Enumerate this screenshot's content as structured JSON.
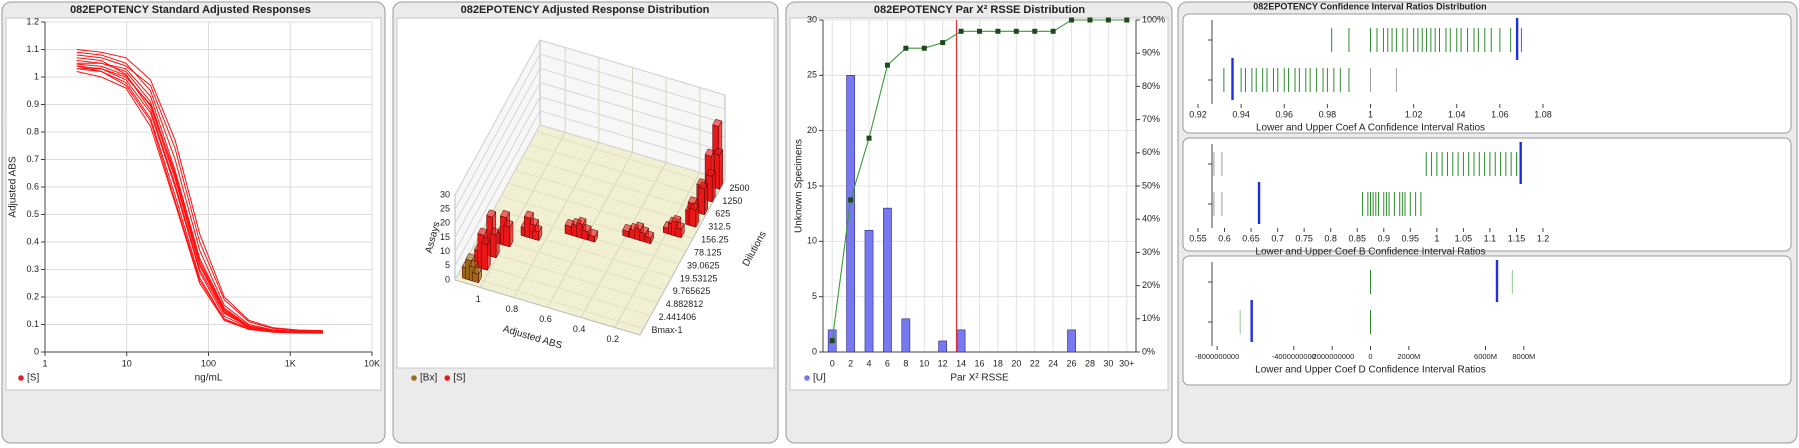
{
  "chart_data": [
    {
      "type": "line",
      "title": "082EPOTENCY Standard Adjusted Responses",
      "xlabel": "ng/mL",
      "ylabel": "Adjusted ABS",
      "xscale": "log",
      "xlim": [
        1,
        10000
      ],
      "xticks": [
        1,
        10,
        100,
        {
          "value": 1000,
          "label": "1K"
        },
        {
          "value": 10000,
          "label": "10K"
        }
      ],
      "ylim": [
        0,
        1.2
      ],
      "yticks": [
        0,
        0.1,
        0.2,
        0.3,
        0.4,
        0.5,
        0.6,
        0.7,
        0.8,
        0.9,
        1,
        1.1,
        1.2
      ],
      "grid": true,
      "color": "#ff1010",
      "legend": {
        "label": "[S]",
        "color": "#e8202a"
      },
      "x": [
        2.441406,
        4.882812,
        9.765625,
        19.53125,
        39.0625,
        78.125,
        156.25,
        312.5,
        625,
        1250,
        2500
      ],
      "series": [
        {
          "values": [
            1.047,
            1.039,
            1.006,
            0.895,
            0.629,
            0.314,
            0.145,
            0.09,
            0.075,
            0.071,
            0.07
          ]
        },
        {
          "values": [
            1.09,
            1.08,
            1.05,
            0.95,
            0.7,
            0.37,
            0.17,
            0.1,
            0.08,
            0.075,
            0.074
          ]
        },
        {
          "values": [
            1.03,
            1.02,
            0.98,
            0.85,
            0.57,
            0.27,
            0.12,
            0.085,
            0.074,
            0.071,
            0.07
          ]
        },
        {
          "values": [
            1.06,
            1.05,
            1.03,
            0.93,
            0.66,
            0.34,
            0.16,
            0.095,
            0.078,
            0.073,
            0.072
          ]
        },
        {
          "values": [
            1.02,
            1.0,
            0.96,
            0.82,
            0.54,
            0.25,
            0.115,
            0.082,
            0.072,
            0.069,
            0.068
          ]
        },
        {
          "values": [
            1.08,
            1.07,
            1.04,
            0.97,
            0.74,
            0.4,
            0.19,
            0.11,
            0.085,
            0.078,
            0.076
          ]
        },
        {
          "values": [
            1.04,
            1.03,
            0.99,
            0.87,
            0.6,
            0.29,
            0.13,
            0.088,
            0.076,
            0.072,
            0.071
          ]
        },
        {
          "values": [
            1.05,
            1.05,
            1.02,
            0.91,
            0.64,
            0.32,
            0.15,
            0.092,
            0.077,
            0.072,
            0.071
          ]
        },
        {
          "values": [
            1.07,
            1.06,
            1.01,
            0.88,
            0.61,
            0.3,
            0.14,
            0.091,
            0.079,
            0.075,
            0.074
          ]
        },
        {
          "values": [
            1.03,
            1.03,
            1.0,
            0.9,
            0.65,
            0.33,
            0.155,
            0.094,
            0.079,
            0.074,
            0.073
          ]
        },
        {
          "values": [
            1.1,
            1.09,
            1.07,
            0.99,
            0.77,
            0.43,
            0.2,
            0.115,
            0.088,
            0.08,
            0.078
          ]
        },
        {
          "values": [
            1.04,
            1.02,
            0.97,
            0.84,
            0.55,
            0.26,
            0.12,
            0.083,
            0.073,
            0.07,
            0.069
          ]
        }
      ]
    },
    {
      "type": "bar3d",
      "title": "082EPOTENCY Adjusted Response Distribution",
      "xlabel": "Adjusted ABS",
      "ylabel": "Dilutions",
      "zlabel": "Assays",
      "abs_lim": [
        1.15,
        0.05
      ],
      "abs_ticks": [
        1,
        0.8,
        0.6,
        0.4,
        0.2
      ],
      "zlim": [
        0,
        30
      ],
      "zticks": [
        0,
        5,
        10,
        15,
        20,
        25,
        30
      ],
      "dilutions": [
        "Bmax-1",
        "2.441406",
        "4.882812",
        "9.765625",
        "19.53125",
        "39.0625",
        "78.125",
        "156.25",
        "312.5",
        "625",
        "1250",
        "2500"
      ],
      "series": [
        {
          "name": "[S]",
          "color": "#e81818",
          "bars": [
            {
              "dilution": 11,
              "abs": 0.075,
              "assays": 22
            },
            {
              "dilution": 11,
              "abs": 0.07,
              "assays": 12
            },
            {
              "dilution": 10,
              "abs": 0.078,
              "assays": 16
            },
            {
              "dilution": 10,
              "abs": 0.072,
              "assays": 9
            },
            {
              "dilution": 9,
              "abs": 0.085,
              "assays": 10
            },
            {
              "dilution": 9,
              "abs": 0.075,
              "assays": 9
            },
            {
              "dilution": 8,
              "abs": 0.11,
              "assays": 5
            },
            {
              "dilution": 8,
              "abs": 0.095,
              "assays": 8
            },
            {
              "dilution": 8,
              "abs": 0.085,
              "assays": 6
            },
            {
              "dilution": 7,
              "abs": 0.2,
              "assays": 2
            },
            {
              "dilution": 7,
              "abs": 0.17,
              "assays": 4
            },
            {
              "dilution": 7,
              "abs": 0.15,
              "assays": 5
            },
            {
              "dilution": 7,
              "abs": 0.13,
              "assays": 3
            },
            {
              "dilution": 6,
              "abs": 0.4,
              "assays": 2
            },
            {
              "dilution": 6,
              "abs": 0.36,
              "assays": 3
            },
            {
              "dilution": 6,
              "abs": 0.33,
              "assays": 4
            },
            {
              "dilution": 6,
              "abs": 0.3,
              "assays": 3
            },
            {
              "dilution": 6,
              "abs": 0.27,
              "assays": 2
            },
            {
              "dilution": 5,
              "abs": 0.7,
              "assays": 3
            },
            {
              "dilution": 5,
              "abs": 0.66,
              "assays": 4
            },
            {
              "dilution": 5,
              "abs": 0.63,
              "assays": 5
            },
            {
              "dilution": 5,
              "abs": 0.6,
              "assays": 3
            },
            {
              "dilution": 5,
              "abs": 0.56,
              "assays": 2
            },
            {
              "dilution": 4,
              "abs": 0.92,
              "assays": 3
            },
            {
              "dilution": 4,
              "abs": 0.9,
              "assays": 7
            },
            {
              "dilution": 4,
              "abs": 0.87,
              "assays": 5
            },
            {
              "dilution": 4,
              "abs": 0.85,
              "assays": 3
            },
            {
              "dilution": 3,
              "abs": 1.02,
              "assays": 4
            },
            {
              "dilution": 3,
              "abs": 1.0,
              "assays": 10
            },
            {
              "dilution": 3,
              "abs": 0.98,
              "assays": 7
            },
            {
              "dilution": 2,
              "abs": 1.06,
              "assays": 5
            },
            {
              "dilution": 2,
              "abs": 1.04,
              "assays": 14
            },
            {
              "dilution": 2,
              "abs": 1.02,
              "assays": 8
            },
            {
              "dilution": 1,
              "abs": 1.07,
              "assays": 6
            },
            {
              "dilution": 1,
              "abs": 1.05,
              "assays": 12
            },
            {
              "dilution": 1,
              "abs": 1.03,
              "assays": 9
            }
          ]
        },
        {
          "name": "[Bx]",
          "color": "#9a6a18",
          "bars": [
            {
              "dilution": 0,
              "abs": 1.1,
              "assays": 4
            },
            {
              "dilution": 0,
              "abs": 1.08,
              "assays": 7
            },
            {
              "dilution": 0,
              "abs": 1.06,
              "assays": 5
            },
            {
              "dilution": 0,
              "abs": 1.04,
              "assays": 3
            }
          ]
        }
      ]
    },
    {
      "type": "bar",
      "title": "082EPOTENCY Par X² RSSE Distribution",
      "xlabel": "Par X² RSSE",
      "ylabel": "Unknown Specimens",
      "categories": [
        "0",
        "2",
        "4",
        "6",
        "8",
        "10",
        "12",
        "14",
        "16",
        "18",
        "20",
        "22",
        "24",
        "26",
        "28",
        "30",
        "30+"
      ],
      "ylim": [
        0,
        30
      ],
      "yticks": [
        0,
        5,
        10,
        15,
        20,
        25,
        30
      ],
      "y2lim": [
        0,
        100
      ],
      "y2ticks": [
        {
          "value": 0,
          "label": "0%"
        },
        {
          "value": 10,
          "label": "10%"
        },
        {
          "value": 20,
          "label": "20%"
        },
        {
          "value": 30,
          "label": "30%"
        },
        {
          "value": 40,
          "label": "40%"
        },
        {
          "value": 50,
          "label": "50%"
        },
        {
          "value": 60,
          "label": "60%"
        },
        {
          "value": 70,
          "label": "70%"
        },
        {
          "value": 80,
          "label": "80%"
        },
        {
          "value": 90,
          "label": "90%"
        },
        {
          "value": 100,
          "label": "100%"
        }
      ],
      "grid": true,
      "reference_line": {
        "value": 13.5,
        "color": "#e03030"
      },
      "series": [
        {
          "name": "[U]",
          "type": "bar",
          "color": "#7878f0",
          "values": [
            2,
            25,
            11,
            13,
            3,
            0,
            1,
            2,
            0,
            0,
            0,
            0,
            0,
            2,
            0,
            0,
            0
          ]
        },
        {
          "type": "line",
          "axis": "y2",
          "color": "#3a9a3a",
          "values": [
            3.4,
            45.8,
            64.4,
            86.4,
            91.5,
            91.5,
            93.2,
            96.6,
            96.6,
            96.6,
            96.6,
            96.6,
            96.6,
            100,
            100,
            100,
            100
          ]
        }
      ]
    },
    {
      "type": "strip",
      "title": "082EPOTENCY Confidence Interval Ratios Distribution",
      "subplots": [
        {
          "xlabel": "Lower and Upper Coef A Confidence Interval Ratios",
          "xlim": [
            0.92,
            1.08
          ],
          "xticks": [
            0.92,
            0.94,
            0.96,
            0.98,
            1,
            1.02,
            1.04,
            1.06,
            1.08
          ],
          "rows": [
            {
              "series": [
                {
                  "color": "#2e8b2e",
                  "values": [
                    0.982,
                    0.99,
                    1.0,
                    1.003,
                    1.006,
                    1.008,
                    1.01,
                    1.012,
                    1.015,
                    1.017,
                    1.02,
                    1.022,
                    1.024,
                    1.026,
                    1.028,
                    1.03,
                    1.032,
                    1.035,
                    1.037,
                    1.04,
                    1.042,
                    1.045,
                    1.048,
                    1.05,
                    1.053,
                    1.056,
                    1.06,
                    1.065,
                    1.07
                  ]
                },
                {
                  "color": "#1f2fe0",
                  "style": "long",
                  "values": [
                    1.068
                  ]
                }
              ]
            },
            {
              "series": [
                {
                  "color": "#2e8b2e",
                  "values": [
                    0.932,
                    0.94,
                    0.942,
                    0.945,
                    0.947,
                    0.95,
                    0.952,
                    0.955,
                    0.957,
                    0.96,
                    0.962,
                    0.965,
                    0.967,
                    0.97,
                    0.972,
                    0.975,
                    0.978,
                    0.98,
                    0.983,
                    0.986,
                    0.99
                  ]
                },
                {
                  "color": "#a0a0a0",
                  "values": [
                    1.0,
                    1.012
                  ]
                },
                {
                  "color": "#1f2fe0",
                  "style": "long",
                  "values": [
                    0.936
                  ]
                }
              ]
            }
          ]
        },
        {
          "xlabel": "Lower and Upper Coef B Confidence Interval Ratios",
          "xlim": [
            0.55,
            1.2
          ],
          "xticks": [
            0.55,
            0.6,
            0.65,
            0.7,
            0.75,
            0.8,
            0.85,
            0.9,
            0.95,
            1,
            1.05,
            1.1,
            1.15,
            1.2
          ],
          "rows": [
            {
              "series": [
                {
                  "color": "#a0a0a0",
                  "values": [
                    0.58,
                    0.595
                  ]
                },
                {
                  "color": "#2e8b2e",
                  "values": [
                    0.98,
                    0.99,
                    1.0,
                    1.01,
                    1.02,
                    1.03,
                    1.04,
                    1.05,
                    1.06,
                    1.07,
                    1.08,
                    1.09,
                    1.1,
                    1.11,
                    1.12,
                    1.13,
                    1.14,
                    1.15
                  ]
                },
                {
                  "color": "#1f2fe0",
                  "style": "long",
                  "values": [
                    1.158
                  ]
                }
              ]
            },
            {
              "series": [
                {
                  "color": "#a0a0a0",
                  "values": [
                    0.58,
                    0.595
                  ]
                },
                {
                  "color": "#2e8b2e",
                  "values": [
                    0.86,
                    0.87,
                    0.875,
                    0.88,
                    0.885,
                    0.89,
                    0.9,
                    0.905,
                    0.91,
                    0.92,
                    0.93,
                    0.935,
                    0.94,
                    0.95,
                    0.96,
                    0.97
                  ]
                },
                {
                  "color": "#1f2fe0",
                  "style": "long",
                  "values": [
                    0.665
                  ]
                }
              ]
            }
          ]
        },
        {
          "xlabel": "Lower and Upper Coef D Confidence Interval Ratios",
          "xlim": [
            -9000000000,
            9000000000
          ],
          "xticks": [
            {
              "value": -8000000000,
              "label": "-8000000000"
            },
            {
              "value": -4000000000,
              "label": "-4000000000"
            },
            {
              "value": -2000000000,
              "label": "-2000000000"
            },
            0,
            {
              "value": 2000000000,
              "label": "2000M"
            },
            {
              "value": 6000000000,
              "label": "6000M"
            },
            {
              "value": 8000000000,
              "label": "8000M"
            }
          ],
          "rows": [
            {
              "series": [
                {
                  "color": "#2e8b2e",
                  "values": [
                    0
                  ]
                },
                {
                  "color": "#8fc98f",
                  "values": [
                    7400000000
                  ]
                },
                {
                  "color": "#1f2fe0",
                  "style": "long",
                  "values": [
                    6600000000
                  ]
                }
              ]
            },
            {
              "series": [
                {
                  "color": "#2e8b2e",
                  "values": [
                    0
                  ]
                },
                {
                  "color": "#8fc98f",
                  "values": [
                    -6800000000
                  ]
                },
                {
                  "color": "#1f2fe0",
                  "style": "long",
                  "values": [
                    -6200000000
                  ]
                }
              ]
            }
          ]
        }
      ]
    }
  ]
}
